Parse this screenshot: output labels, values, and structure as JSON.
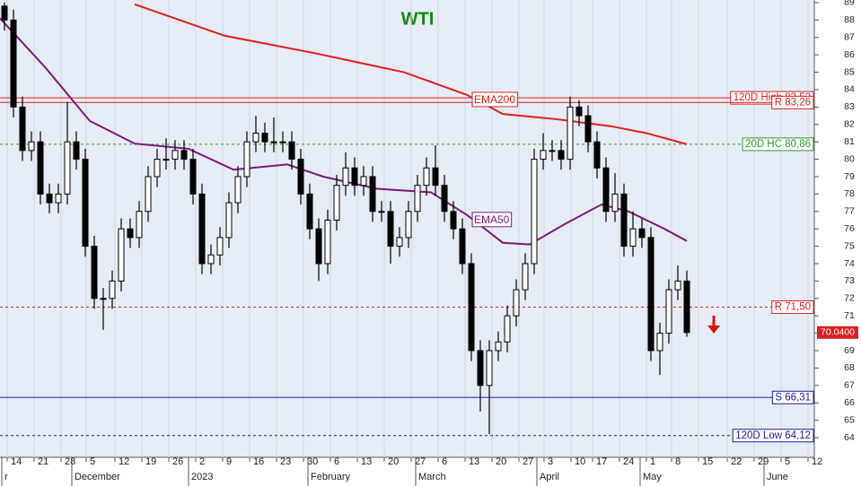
{
  "chart_data": {
    "type": "candlestick",
    "title": "WTI",
    "title_color": "#118811",
    "up_color": "#ffffff",
    "down_color": "#000000",
    "xlim": [
      -0.5,
      90.2
    ],
    "ylim": [
      62.87,
      89.15
    ],
    "yticks": [
      64,
      65,
      66,
      67,
      68,
      69,
      70,
      71,
      72,
      73,
      74,
      75,
      76,
      77,
      78,
      79,
      80,
      81,
      82,
      83,
      84,
      85,
      86,
      87,
      88,
      89
    ],
    "grid": true,
    "xticks": [
      {
        "value": 0.3,
        "label": "14"
      },
      {
        "value": 3.3,
        "label": "21"
      },
      {
        "value": 6.3,
        "label": "28"
      },
      {
        "value": 9.1,
        "label": "5"
      },
      {
        "value": 12.3,
        "label": "12"
      },
      {
        "value": 15.3,
        "label": "19"
      },
      {
        "value": 18.3,
        "label": "26"
      },
      {
        "value": 21.3,
        "label": "2"
      },
      {
        "value": 24.3,
        "label": "9"
      },
      {
        "value": 27.3,
        "label": "16"
      },
      {
        "value": 30.3,
        "label": "23"
      },
      {
        "value": 33.3,
        "label": "30"
      },
      {
        "value": 36.3,
        "label": "6"
      },
      {
        "value": 39.3,
        "label": "13"
      },
      {
        "value": 42.3,
        "label": "20"
      },
      {
        "value": 45.3,
        "label": "27"
      },
      {
        "value": 48.3,
        "label": "6"
      },
      {
        "value": 51.3,
        "label": "13"
      },
      {
        "value": 54.3,
        "label": "20"
      },
      {
        "value": 57.3,
        "label": "27"
      },
      {
        "value": 60.1,
        "label": "3"
      },
      {
        "value": 63.1,
        "label": "10"
      },
      {
        "value": 65.5,
        "label": "17"
      },
      {
        "value": 68.5,
        "label": "24"
      },
      {
        "value": 71.5,
        "label": "1"
      },
      {
        "value": 74.3,
        "label": "8"
      },
      {
        "value": 77.3,
        "label": "15"
      },
      {
        "value": 80.5,
        "label": "22"
      },
      {
        "value": 83.5,
        "label": "29"
      },
      {
        "value": 86.5,
        "label": "5"
      },
      {
        "value": 89.5,
        "label": "12"
      }
    ],
    "month_ticks": [
      {
        "value": -0.3,
        "label": "r"
      },
      {
        "value": 7.5,
        "label": "December"
      },
      {
        "value": 20.5,
        "label": "2023"
      },
      {
        "value": 33.8,
        "label": "February"
      },
      {
        "value": 45.8,
        "label": "March"
      },
      {
        "value": 59.3,
        "label": "April"
      },
      {
        "value": 70.8,
        "label": "May"
      },
      {
        "value": 84.6,
        "label": "June"
      }
    ],
    "open": [
      88.8,
      88,
      83,
      80.5,
      81,
      78,
      77.5,
      78,
      81,
      80,
      75,
      72,
      72,
      73,
      76,
      75.5,
      77,
      79,
      80,
      80,
      80.5,
      80,
      78,
      74,
      74.5,
      75.5,
      77.5,
      79,
      81,
      81.5,
      81,
      81,
      81,
      80,
      78,
      76,
      74,
      76.5,
      78.5,
      79.5,
      78.5,
      79,
      77,
      77,
      75,
      75.5,
      77,
      78.5,
      79.5,
      78.5,
      77,
      76,
      74,
      69,
      67,
      69,
      69.5,
      71,
      72.5,
      74,
      80,
      80.5,
      80.5,
      80,
      83,
      82.5,
      81,
      79.5,
      77,
      78,
      75,
      76,
      75.5,
      69,
      70,
      72.5,
      73
    ],
    "high": [
      89,
      88.6,
      83.6,
      81.6,
      81.6,
      78.6,
      78.6,
      83.3,
      81.6,
      80.6,
      75.6,
      72.6,
      73.6,
      76.6,
      76.6,
      77.6,
      79.6,
      80.6,
      81.2,
      81.1,
      81.1,
      80.6,
      78.6,
      75.1,
      76.1,
      78.1,
      79.6,
      81.6,
      82.5,
      82.1,
      82.4,
      81.6,
      81.6,
      80.6,
      78.6,
      76.6,
      77.1,
      79.1,
      80.4,
      80.1,
      79.6,
      79.6,
      77.6,
      77.6,
      76.1,
      77.6,
      79.1,
      80.1,
      80.8,
      79.1,
      77.6,
      76.6,
      74.6,
      69.6,
      69.6,
      70.1,
      71.6,
      73.1,
      74.6,
      80.6,
      81.5,
      81.1,
      81.1,
      83.6,
      83.4,
      83.1,
      81.6,
      80.1,
      79.2,
      78.6,
      77,
      76.6,
      76.1,
      70.6,
      73.1,
      73.9,
      73.6
    ],
    "low": [
      87.4,
      82.4,
      79.9,
      79.9,
      77.4,
      76.9,
      76.9,
      77.4,
      79.4,
      74.4,
      71.4,
      70.2,
      71.4,
      72.4,
      74.9,
      74.9,
      76.4,
      78.4,
      79.4,
      79.4,
      79.4,
      77.4,
      73.4,
      73.4,
      73.9,
      74.9,
      76.9,
      78.4,
      80.4,
      80.4,
      80.4,
      80.4,
      79.4,
      77.4,
      75.4,
      73,
      73.4,
      75.9,
      77.9,
      77.9,
      77.9,
      76.4,
      76.4,
      74,
      74.4,
      74.9,
      76.4,
      77.9,
      77.9,
      76.4,
      75.4,
      73.4,
      68.4,
      65.5,
      64.2,
      68.4,
      68.9,
      70.4,
      71.9,
      73.4,
      79.4,
      79.9,
      79.4,
      79.4,
      81.9,
      80.4,
      78.9,
      76.4,
      76.4,
      74.4,
      74.4,
      74.9,
      68.4,
      67.6,
      69.4,
      71.9,
      69.8
    ],
    "close": [
      88,
      83,
      80.5,
      81,
      78,
      77.5,
      78,
      81,
      80,
      75,
      72,
      72,
      73,
      76,
      75.5,
      77,
      79,
      80,
      80,
      80.5,
      80,
      78,
      74,
      74.5,
      75.5,
      77.5,
      79,
      81,
      81.5,
      81,
      81,
      81,
      80,
      78,
      76,
      74,
      76.5,
      78.5,
      79.5,
      78.5,
      79,
      77,
      77,
      75,
      75.5,
      77,
      78.5,
      79.5,
      78.5,
      77,
      76,
      74,
      69,
      67,
      69,
      69.5,
      71,
      72.5,
      74,
      80,
      80.5,
      80.5,
      80,
      83,
      82.5,
      81,
      79.5,
      77,
      78,
      75,
      76,
      75.5,
      69,
      70,
      72.5,
      73,
      70.04
    ],
    "last_value_label": "70.0400",
    "overlays": [
      {
        "name": "EMA200",
        "color": "#dd1f1f",
        "x": [
          14.5,
          24.5,
          34.5,
          44.5,
          51.5,
          55.5,
          61.5,
          67.5,
          71.5,
          76
        ],
        "values": [
          88.9,
          87.1,
          86.1,
          85.0,
          83.7,
          82.6,
          82.3,
          81.9,
          81.5,
          80.86
        ]
      },
      {
        "name": "EMA50",
        "color": "#7a1a7a",
        "x": [
          -0.5,
          4.5,
          9.5,
          14.5,
          20.5,
          25.5,
          31.5,
          35.5,
          41.5,
          47.5,
          51.5,
          55.5,
          58.5,
          62.5,
          66.5,
          69.5,
          73.5,
          76
        ],
        "values": [
          88.1,
          85.3,
          82.2,
          80.9,
          80.6,
          79.4,
          79.7,
          79.0,
          78.3,
          78.1,
          76.8,
          75.2,
          75.1,
          76.3,
          77.4,
          77.0,
          76.0,
          75.3
        ]
      }
    ],
    "levels": [
      {
        "label": "120D High 83,53",
        "value": 83.53,
        "color": "#dd1f1f",
        "style": "solid"
      },
      {
        "label": "R 83,26",
        "value": 83.26,
        "color": "#dd1f1f",
        "style": "solid"
      },
      {
        "label": "20D HC 80,86",
        "value": 80.86,
        "color": "#2a9a2a",
        "style": "dashed"
      },
      {
        "label": "R 71,50",
        "value": 71.5,
        "color": "#dd1f1f",
        "style": "dashed"
      },
      {
        "label": "S 66,31",
        "value": 66.31,
        "color": "#1a1aa0",
        "style": "solid"
      },
      {
        "label": "120D Low 64,12",
        "value": 64.12,
        "color": "#1a1aa0",
        "style": "dashed"
      }
    ]
  }
}
